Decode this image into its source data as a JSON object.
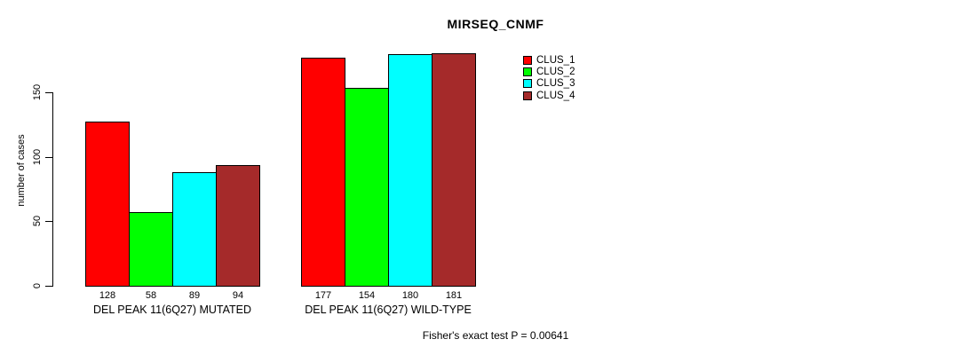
{
  "title": "MIRSEQ_CNMF",
  "y_axis_label": "number of cases",
  "footer_note": "Fisher's exact test P = 0.00641",
  "chart_data": {
    "type": "bar",
    "title": "MIRSEQ_CNMF",
    "xlabel": "",
    "ylabel": "number of cases",
    "categories": [
      "DEL PEAK 11(6Q27) MUTATED",
      "DEL PEAK 11(6Q27) WILD-TYPE"
    ],
    "series": [
      {
        "name": "CLUS_1",
        "color": "#FF0000",
        "values": [
          128,
          177
        ]
      },
      {
        "name": "CLUS_2",
        "color": "#00FF00",
        "values": [
          58,
          154
        ]
      },
      {
        "name": "CLUS_3",
        "color": "#00FFFF",
        "values": [
          89,
          180
        ]
      },
      {
        "name": "CLUS_4",
        "color": "#A52A2A",
        "values": [
          94,
          181
        ]
      }
    ],
    "bar_value_labels": [
      [
        128,
        58,
        89,
        94
      ],
      [
        177,
        154,
        180,
        181
      ]
    ],
    "y_ticks": [
      0,
      50,
      100,
      150
    ],
    "ylim": [
      0,
      185
    ],
    "grid": false,
    "legend_entries": [
      "CLUS_1",
      "CLUS_2",
      "CLUS_3",
      "CLUS_4"
    ],
    "legend_position": "upper-right-inside",
    "annotation": "Fisher's exact test P = 0.00641"
  }
}
